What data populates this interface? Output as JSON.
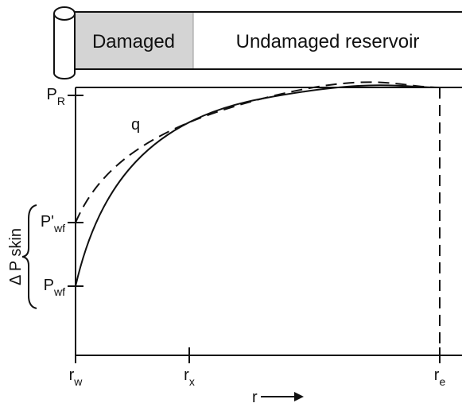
{
  "header": {
    "damaged": "Damaged",
    "undamaged": "Undamaged reservoir"
  },
  "curve_label": "q",
  "skin_label": "Δ P skin",
  "y_labels": [
    {
      "base": "P",
      "sub": "R"
    },
    {
      "base": "P'",
      "sub": "wf"
    },
    {
      "base": "P",
      "sub": "wf"
    }
  ],
  "x_labels": [
    {
      "base": "r",
      "sub": "w"
    },
    {
      "base": "r",
      "sub": "x"
    },
    {
      "base": "r",
      "sub": "e"
    }
  ],
  "x_axis_label": "r"
}
